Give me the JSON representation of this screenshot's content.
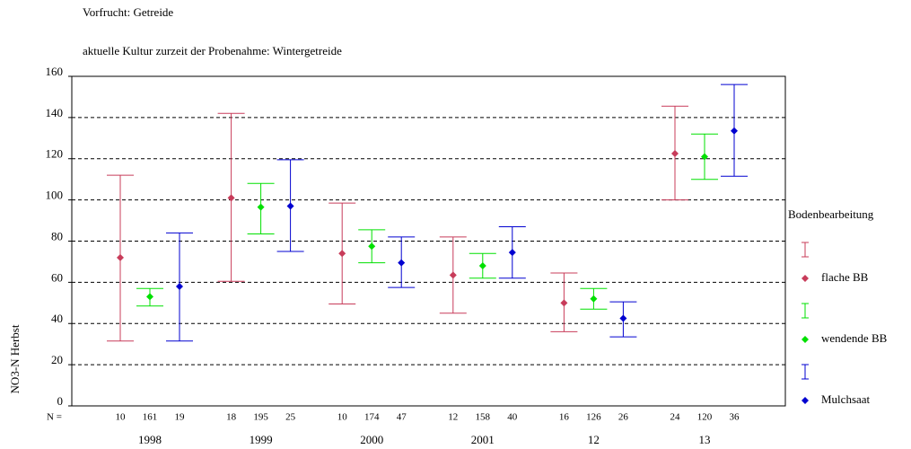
{
  "chart_data": {
    "type": "errorbar",
    "title": "Vorfrucht: Getreide",
    "subtitle": "aktuelle Kultur zurzeit der Probenahme: Wintergetreide",
    "y_label": "NO3-N Herbst",
    "n_label": "N =",
    "legend_title": "Bodenbearbeitung",
    "categories": [
      "1998",
      "1999",
      "2000",
      "2001",
      "12",
      "13"
    ],
    "ylim": [
      0,
      160
    ],
    "yticks": [
      0,
      20,
      40,
      60,
      80,
      100,
      120,
      140,
      160
    ],
    "grid": true,
    "series": [
      {
        "name": "flache BB",
        "color": "#c83c5a",
        "values": [
          72,
          101,
          74,
          63.5,
          50,
          122.5
        ],
        "low": [
          31.5,
          60.5,
          49.5,
          45,
          36,
          100
        ],
        "high": [
          112,
          142,
          98.5,
          82,
          64.5,
          145.5
        ],
        "n": [
          10,
          18,
          10,
          12,
          16,
          24
        ]
      },
      {
        "name": "wendende BB",
        "color": "#00e000",
        "values": [
          53,
          96.5,
          77.5,
          68,
          52,
          121
        ],
        "low": [
          48.5,
          83.5,
          69.5,
          62,
          47,
          110
        ],
        "high": [
          57,
          108,
          85.5,
          74,
          57,
          132
        ],
        "n": [
          161,
          195,
          174,
          158,
          126,
          120
        ]
      },
      {
        "name": "Mulchsaat",
        "color": "#0000d0",
        "values": [
          58,
          97,
          69.5,
          74.5,
          42.5,
          133.5
        ],
        "low": [
          31.5,
          75,
          57.5,
          62,
          33.5,
          111.5
        ],
        "high": [
          84,
          119.5,
          82,
          87,
          50.5,
          156
        ],
        "n": [
          19,
          25,
          47,
          40,
          26,
          36
        ]
      }
    ]
  }
}
